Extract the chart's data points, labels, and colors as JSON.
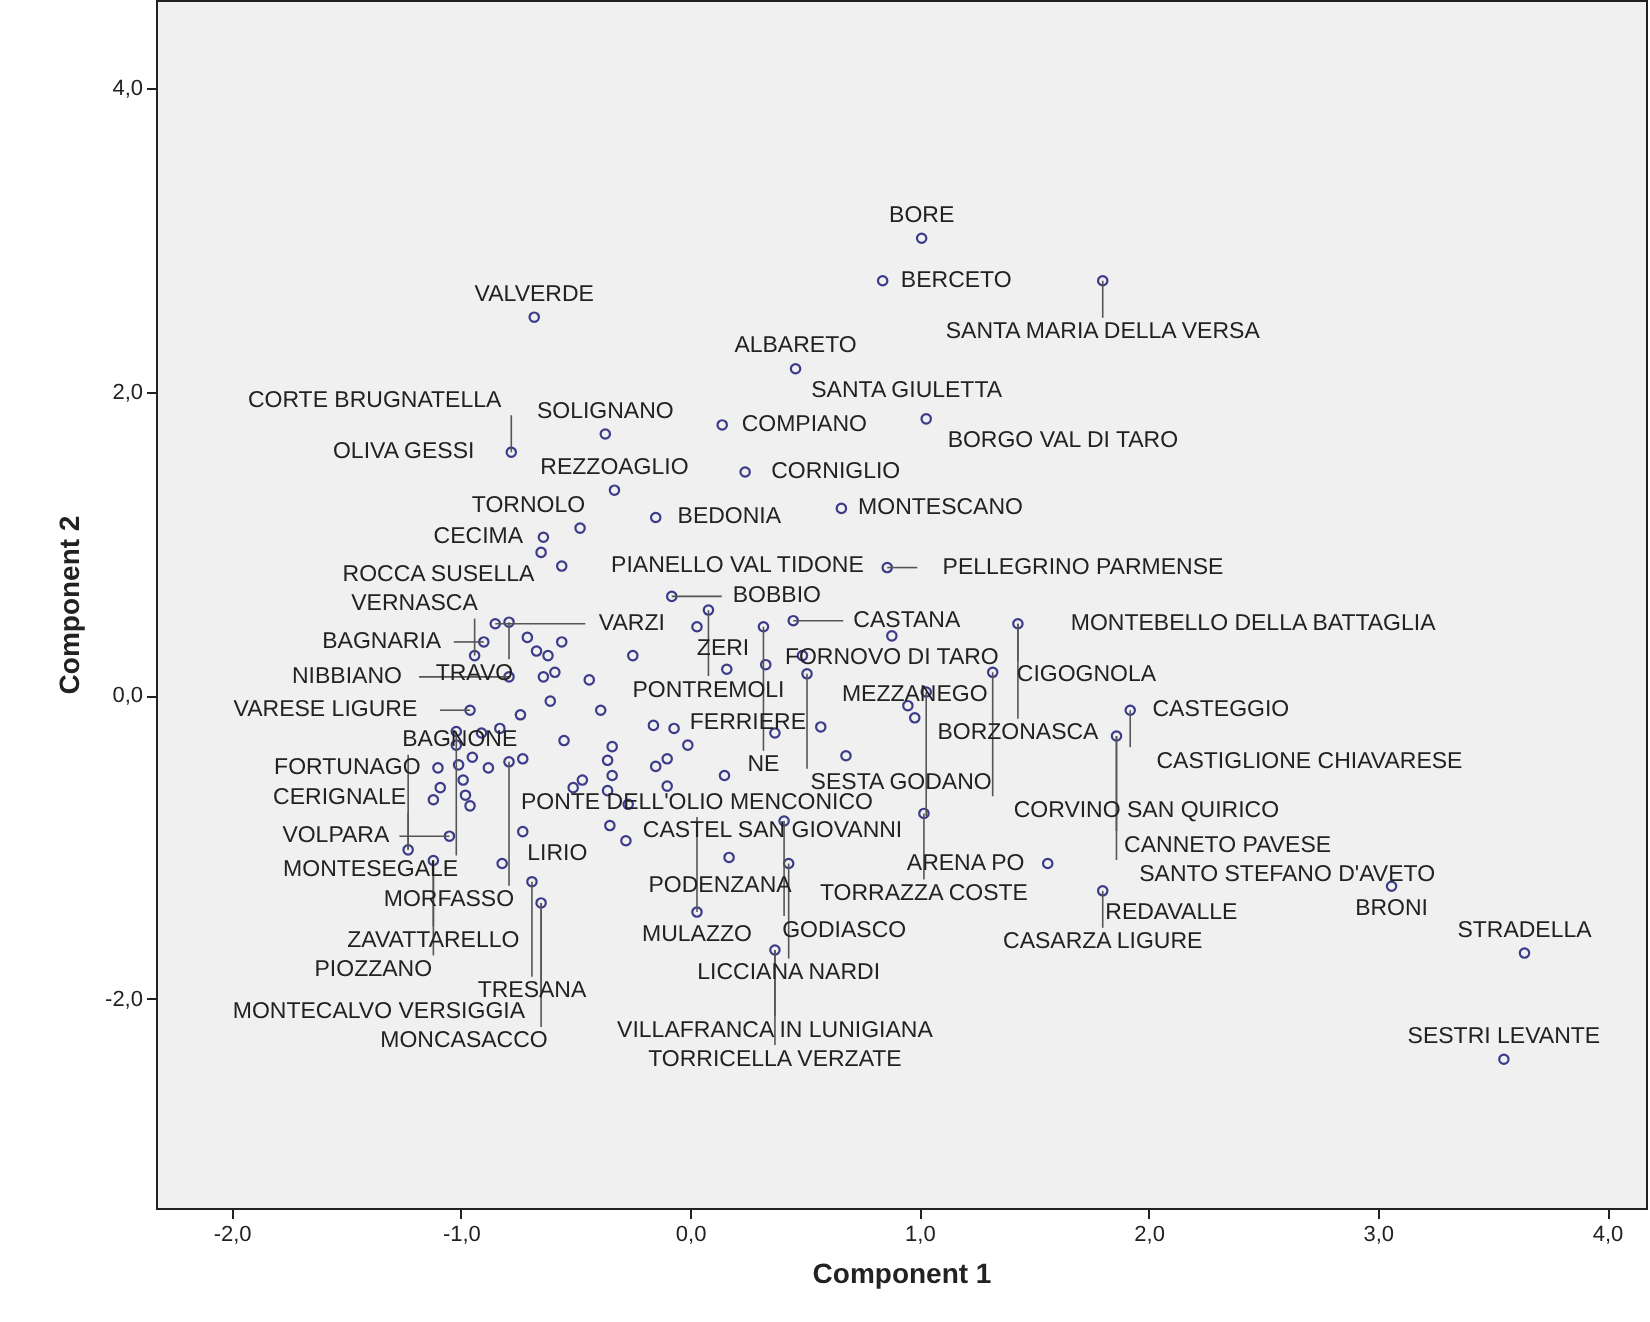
{
  "chart_data": {
    "type": "scatter",
    "xlabel": "Component 1",
    "ylabel": "Component 2",
    "marker": "circle",
    "grid": false,
    "xlim": [
      -2.33,
      4.17
    ],
    "ylim": [
      -3.38,
      4.58
    ],
    "xticks": [
      {
        "value": -2,
        "label": "-2,0"
      },
      {
        "value": -1,
        "label": "-1,0"
      },
      {
        "value": 0,
        "label": "0,0"
      },
      {
        "value": 1,
        "label": "1,0"
      },
      {
        "value": 2,
        "label": "2,0"
      },
      {
        "value": 3,
        "label": "3,0"
      },
      {
        "value": 4,
        "label": "4,0"
      }
    ],
    "yticks": [
      {
        "value": -2,
        "label": "-2,0"
      },
      {
        "value": 0,
        "label": "0,0"
      },
      {
        "value": 2,
        "label": "2,0"
      },
      {
        "value": 4,
        "label": "4,0"
      }
    ],
    "series": [
      {
        "color": "#3b3b8a",
        "x": [
          -0.68,
          0.46,
          -0.37,
          0.14,
          -0.78,
          0.24,
          -0.33,
          0.66,
          -0.15,
          -0.48,
          -0.64,
          -0.65,
          -0.56,
          0.86,
          -0.08,
          0.08,
          0.03,
          0.32,
          0.45,
          -0.85,
          -0.79,
          -0.9,
          -0.94,
          -0.71,
          -0.67,
          -0.62,
          -0.56,
          -0.25,
          0.49,
          0.88,
          -0.79,
          -0.64,
          -0.59,
          -0.44,
          0.16,
          0.33,
          0.51,
          -0.61,
          -0.96,
          -0.74,
          -0.39,
          -0.16,
          -0.07,
          -0.83,
          -0.91,
          -1.02,
          -1.02,
          -0.55,
          -0.34,
          -0.01,
          0.37,
          0.57,
          0.68,
          -0.95,
          -0.88,
          -1.01,
          -1.1,
          -0.79,
          -0.73,
          -0.36,
          -0.34,
          -0.1,
          -0.15,
          0.15,
          -0.99,
          -1.09,
          -1.12,
          -0.98,
          -0.96,
          -0.47,
          -0.51,
          -0.36,
          -0.27,
          -0.1,
          0.41,
          -1.05,
          -0.73,
          -0.35,
          -0.28,
          -1.23,
          -1.12,
          -0.82,
          0.17,
          0.43,
          -0.69,
          -0.65,
          0.03,
          0.37,
          1.43,
          1.32,
          1.03,
          0.95,
          0.98,
          1.92,
          1.86,
          1.02,
          1.56,
          1.8,
          3.06,
          3.64,
          3.55,
          1.01,
          0.84,
          1.8,
          1.03
        ],
        "values": [
          2.49,
          2.15,
          1.72,
          1.78,
          1.6,
          1.47,
          1.35,
          1.23,
          1.17,
          1.1,
          1.04,
          0.94,
          0.85,
          0.84,
          0.65,
          0.56,
          0.45,
          0.45,
          0.49,
          0.47,
          0.48,
          0.35,
          0.26,
          0.38,
          0.29,
          0.26,
          0.35,
          0.26,
          0.26,
          0.39,
          0.12,
          0.12,
          0.15,
          0.1,
          0.17,
          0.2,
          0.14,
          -0.04,
          -0.1,
          -0.13,
          -0.1,
          -0.2,
          -0.22,
          -0.22,
          -0.25,
          -0.24,
          -0.33,
          -0.3,
          -0.34,
          -0.33,
          -0.25,
          -0.21,
          -0.4,
          -0.41,
          -0.48,
          -0.46,
          -0.48,
          -0.44,
          -0.42,
          -0.43,
          -0.53,
          -0.42,
          -0.47,
          -0.53,
          -0.56,
          -0.61,
          -0.69,
          -0.66,
          -0.73,
          -0.56,
          -0.61,
          -0.63,
          -0.72,
          -0.6,
          -0.83,
          -0.93,
          -0.9,
          -0.86,
          -0.96,
          -1.02,
          -1.09,
          -1.11,
          -1.07,
          -1.11,
          -1.23,
          -1.37,
          -1.43,
          -1.68,
          0.47,
          0.15,
          0.02,
          -0.07,
          -0.15,
          -0.1,
          -0.27,
          -0.78,
          -1.11,
          -1.29,
          -1.26,
          -1.7,
          -2.4,
          3.01,
          2.73,
          2.73,
          1.82
        ]
      }
    ],
    "annotations": [
      {
        "text": "VALVERDE",
        "x": -0.68,
        "y": 2.49
      },
      {
        "text": "ALBARETO",
        "x": 0.46,
        "y": 2.15
      },
      {
        "text": "SOLIGNANO",
        "x": -0.37,
        "y": 1.72
      },
      {
        "text": "OLIVA GESSI",
        "x": -0.78,
        "y": 1.6
      },
      {
        "text": "COMPIANO",
        "x": 0.14,
        "y": 1.78
      },
      {
        "text": "CORTE BRUGNATELLA",
        "x": -0.78,
        "y": 1.6
      },
      {
        "text": "CECIMA",
        "x": -0.64,
        "y": 1.04
      },
      {
        "text": "REZZOAGLIO",
        "x": -0.33,
        "y": 1.35
      },
      {
        "text": "CORNIGLIO",
        "x": 0.24,
        "y": 1.47
      },
      {
        "text": "TORNOLO",
        "x": -0.48,
        "y": 1.1
      },
      {
        "text": "BEDONIA",
        "x": -0.15,
        "y": 1.17
      },
      {
        "text": "ROCCA SUSELLA",
        "x": -0.65,
        "y": 0.94
      },
      {
        "text": "PIANELLO VAL TIDONE",
        "x": -0.56,
        "y": 0.85
      },
      {
        "text": "PONTREMOLI",
        "x": 0.08,
        "y": 0.56
      },
      {
        "text": "BAGNARIA",
        "x": -0.9,
        "y": 0.35
      },
      {
        "text": "VARZI",
        "x": -0.85,
        "y": 0.47
      },
      {
        "text": "TRAVO",
        "x": -0.79,
        "y": 0.48
      },
      {
        "text": "BOBBIO",
        "x": -0.08,
        "y": 0.65
      },
      {
        "text": "CASTANA",
        "x": 0.45,
        "y": 0.49
      },
      {
        "text": "VERNASCA",
        "x": -0.94,
        "y": 0.26
      },
      {
        "text": "ZERI",
        "x": 0.03,
        "y": 0.45
      },
      {
        "text": "NE",
        "x": 0.32,
        "y": 0.45
      },
      {
        "text": "VARESE LIGURE",
        "x": -0.96,
        "y": -0.1
      },
      {
        "text": "NIBBIANO",
        "x": -0.79,
        "y": 0.12
      },
      {
        "text": "SESTA GODANO",
        "x": 0.51,
        "y": 0.14
      },
      {
        "text": "BORE",
        "x": 1.01,
        "y": 3.01
      },
      {
        "text": "BERCETO",
        "x": 0.84,
        "y": 2.73
      },
      {
        "text": "SANTA MARIA DELLA VERSA",
        "x": 1.8,
        "y": 2.73
      },
      {
        "text": "SANTA GIULETTA",
        "x": 0.46,
        "y": 2.15
      },
      {
        "text": "BORGO VAL DI TARO",
        "x": 1.03,
        "y": 1.82
      },
      {
        "text": "MONTESCANO",
        "x": 0.66,
        "y": 1.23
      },
      {
        "text": "MONTEBELLO DELLA BATTAGLIA",
        "x": 1.43,
        "y": 0.47
      },
      {
        "text": "PELLEGRINO PARMENSE",
        "x": 0.86,
        "y": 0.84
      },
      {
        "text": "CIGOGNOLA",
        "x": 1.43,
        "y": 0.47
      },
      {
        "text": "BORZONASCA",
        "x": 1.43,
        "y": 0.47
      },
      {
        "text": "FORNOVO DI TARO",
        "x": 0.88,
        "y": 0.39
      },
      {
        "text": "CORVINO SAN QUIRICO",
        "x": 1.32,
        "y": 0.15
      },
      {
        "text": "CASTEL SAN GIOVANNI",
        "x": 1.03,
        "y": 0.02
      },
      {
        "text": "CASTEGGIO",
        "x": 1.92,
        "y": -0.1
      },
      {
        "text": "MEZZANEGO",
        "x": 0.98,
        "y": -0.15
      },
      {
        "text": "CANNETO PAVESE",
        "x": 1.86,
        "y": -0.27
      },
      {
        "text": "TORRAZZA COSTE",
        "x": 1.02,
        "y": -0.78
      },
      {
        "text": "SANTO STEFANO D'AVETO",
        "x": 1.86,
        "y": -0.27
      },
      {
        "text": "CASTIGLIONE CHIAVARESE",
        "x": 1.92,
        "y": -0.1
      },
      {
        "text": "ARENA PO",
        "x": 1.56,
        "y": -1.11
      },
      {
        "text": "REDAVALLE",
        "x": 1.8,
        "y": -1.29
      },
      {
        "text": "BRONI",
        "x": 3.06,
        "y": -1.26
      },
      {
        "text": "PODENZANA",
        "x": 0.43,
        "y": -1.11
      },
      {
        "text": "LICCIANA NARDI",
        "x": 0.43,
        "y": -1.11
      },
      {
        "text": "CASARZA LIGURE",
        "x": 1.8,
        "y": -1.29
      },
      {
        "text": "STRADELLA",
        "x": 3.64,
        "y": -1.7
      },
      {
        "text": "VILLAFRANCA IN LUNIGIANA",
        "x": 0.37,
        "y": -1.68
      },
      {
        "text": "SESTRI LEVANTE",
        "x": 3.55,
        "y": -2.4
      },
      {
        "text": "TORRICELLA VERZATE",
        "x": 0.37,
        "y": -1.68
      },
      {
        "text": "MONTESEGALE",
        "x": -1.02,
        "y": -0.24
      },
      {
        "text": "FORTUNAGO",
        "x": -1.1,
        "y": -0.48
      },
      {
        "text": "MORFASSO",
        "x": -0.79,
        "y": -0.44
      },
      {
        "text": "FERRIERE",
        "x": -0.01,
        "y": -0.33
      },
      {
        "text": "GODIASCO",
        "x": 0.41,
        "y": -0.83
      },
      {
        "text": "VOLPARA",
        "x": -1.05,
        "y": -0.93
      },
      {
        "text": "LIRIO",
        "x": -0.73,
        "y": -0.9
      },
      {
        "text": "CERIGNALE",
        "x": -1.23,
        "y": -1.02
      },
      {
        "text": "MULAZZO",
        "x": 0.03,
        "y": -1.43
      },
      {
        "text": "ZAVATTARELLO",
        "x": -1.12,
        "y": -1.09
      },
      {
        "text": "TRESANA",
        "x": -0.69,
        "y": -1.23
      },
      {
        "text": "PIOZZANO",
        "x": -1.12,
        "y": -1.09
      },
      {
        "text": "MONCASACCO",
        "x": -0.65,
        "y": -1.37
      },
      {
        "text": "BAGNONE",
        "x": -1.23,
        "y": -1.02
      },
      {
        "text": "MONTECALVO VERSIGGIA",
        "x": -0.65,
        "y": -1.37
      },
      {
        "text": "PONTE DELL'OLIO MENCONICO",
        "x": 0.03,
        "y": -1.43
      }
    ]
  }
}
